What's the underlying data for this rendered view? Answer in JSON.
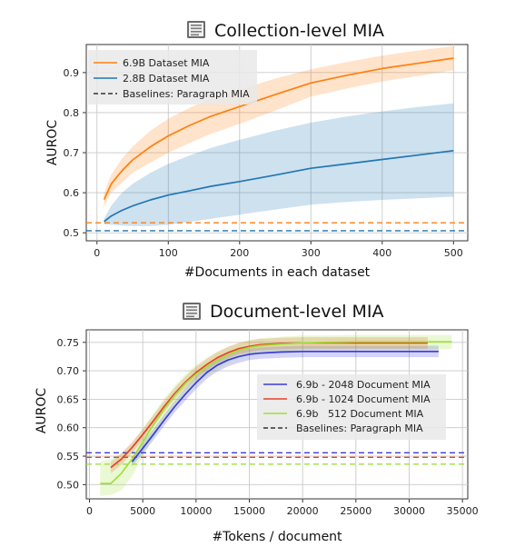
{
  "chart_data": [
    {
      "type": "line",
      "title": "Collection-level MIA",
      "title_icon": "document-stack-icon",
      "xlabel": "#Documents in each dataset",
      "ylabel": "AUROC",
      "xlim": [
        -15,
        520
      ],
      "ylim": [
        0.48,
        0.97
      ],
      "xticks": [
        0,
        100,
        200,
        300,
        400,
        500
      ],
      "yticks": [
        0.5,
        0.6,
        0.7,
        0.8,
        0.9
      ],
      "grid": true,
      "legend_position": "top-left",
      "series": [
        {
          "name": "6.9B Dataset MIA",
          "color": "#ff7f0e",
          "x": [
            10,
            20,
            35,
            50,
            75,
            100,
            130,
            160,
            200,
            250,
            300,
            350,
            400,
            450,
            500
          ],
          "y": [
            0.583,
            0.622,
            0.655,
            0.682,
            0.715,
            0.742,
            0.768,
            0.791,
            0.815,
            0.845,
            0.874,
            0.893,
            0.91,
            0.923,
            0.936
          ],
          "upper": [
            0.6,
            0.645,
            0.685,
            0.715,
            0.755,
            0.785,
            0.812,
            0.835,
            0.858,
            0.885,
            0.908,
            0.926,
            0.942,
            0.955,
            0.966
          ],
          "lower": [
            0.566,
            0.6,
            0.625,
            0.65,
            0.675,
            0.7,
            0.724,
            0.747,
            0.772,
            0.805,
            0.84,
            0.86,
            0.878,
            0.891,
            0.906
          ]
        },
        {
          "name": "2.8B Dataset MIA",
          "color": "#1f77b4",
          "x": [
            10,
            20,
            35,
            50,
            75,
            100,
            130,
            160,
            200,
            250,
            300,
            350,
            400,
            450,
            500
          ],
          "y": [
            0.528,
            0.542,
            0.556,
            0.567,
            0.582,
            0.594,
            0.605,
            0.616,
            0.628,
            0.644,
            0.661,
            0.672,
            0.683,
            0.694,
            0.705
          ],
          "upper": [
            0.535,
            0.568,
            0.6,
            0.622,
            0.65,
            0.672,
            0.693,
            0.712,
            0.732,
            0.755,
            0.775,
            0.79,
            0.803,
            0.814,
            0.823
          ],
          "lower": [
            0.521,
            0.52,
            0.518,
            0.517,
            0.517,
            0.52,
            0.527,
            0.535,
            0.545,
            0.558,
            0.57,
            0.577,
            0.582,
            0.586,
            0.59
          ]
        }
      ],
      "baselines": [
        {
          "name": "Baselines: Paragraph MIA",
          "value": 0.525,
          "color": "#ff7f0e"
        },
        {
          "name": "",
          "value": 0.505,
          "color": "#1f77b4"
        }
      ],
      "legend_baseline_label": "Baselines: Paragraph MIA"
    },
    {
      "type": "line",
      "title": "Document-level MIA",
      "title_icon": "document-icon",
      "xlabel": "#Tokens / document",
      "ylabel": "AUROC",
      "xlim": [
        -300,
        35500
      ],
      "ylim": [
        0.475,
        0.772
      ],
      "xticks": [
        0,
        5000,
        10000,
        15000,
        20000,
        25000,
        30000,
        35000
      ],
      "yticks": [
        0.5,
        0.55,
        0.6,
        0.65,
        0.7,
        0.75
      ],
      "grid": true,
      "legend_position": "center-right",
      "series": [
        {
          "name": "6.9b - 2048 Document MIA",
          "color": "#3b3bdc",
          "x": [
            4000,
            5000,
            6000,
            7000,
            8000,
            9000,
            10000,
            11000,
            12000,
            13000,
            14000,
            15000,
            16000,
            18000,
            20000,
            22000,
            25000,
            28000,
            30000,
            32768
          ],
          "y": [
            0.54,
            0.564,
            0.588,
            0.613,
            0.637,
            0.659,
            0.679,
            0.697,
            0.71,
            0.719,
            0.725,
            0.729,
            0.731,
            0.733,
            0.734,
            0.734,
            0.734,
            0.734,
            0.734,
            0.734
          ],
          "upper": [
            0.548,
            0.574,
            0.598,
            0.623,
            0.647,
            0.67,
            0.69,
            0.708,
            0.721,
            0.73,
            0.736,
            0.739,
            0.741,
            0.743,
            0.744,
            0.744,
            0.744,
            0.744,
            0.744,
            0.744
          ],
          "lower": [
            0.532,
            0.554,
            0.578,
            0.603,
            0.627,
            0.648,
            0.668,
            0.686,
            0.699,
            0.708,
            0.714,
            0.719,
            0.721,
            0.723,
            0.724,
            0.724,
            0.724,
            0.724,
            0.724,
            0.724
          ]
        },
        {
          "name": "6.9b - 1024 Document MIA",
          "color": "#e8402a",
          "x": [
            2000,
            3000,
            4000,
            5000,
            6000,
            7000,
            8000,
            9000,
            10000,
            11000,
            12000,
            13000,
            14000,
            15000,
            16000,
            18000,
            20000,
            22000,
            25000,
            28000,
            30000,
            31744
          ],
          "y": [
            0.53,
            0.545,
            0.565,
            0.588,
            0.612,
            0.637,
            0.66,
            0.68,
            0.697,
            0.711,
            0.723,
            0.732,
            0.739,
            0.743,
            0.746,
            0.748,
            0.749,
            0.749,
            0.749,
            0.749,
            0.749,
            0.749
          ],
          "upper": [
            0.54,
            0.555,
            0.575,
            0.598,
            0.622,
            0.647,
            0.67,
            0.69,
            0.707,
            0.721,
            0.733,
            0.742,
            0.749,
            0.753,
            0.756,
            0.758,
            0.759,
            0.759,
            0.759,
            0.759,
            0.759,
            0.759
          ],
          "lower": [
            0.52,
            0.535,
            0.555,
            0.578,
            0.602,
            0.627,
            0.65,
            0.67,
            0.687,
            0.701,
            0.713,
            0.722,
            0.729,
            0.733,
            0.736,
            0.738,
            0.739,
            0.739,
            0.739,
            0.739,
            0.739,
            0.739
          ]
        },
        {
          "name": "6.9b   512 Document MIA",
          "color": "#9fe03a",
          "x": [
            1000,
            2000,
            3000,
            4000,
            5000,
            6000,
            7000,
            8000,
            9000,
            10000,
            11000,
            12000,
            13000,
            14000,
            15000,
            16000,
            18000,
            20000,
            22000,
            25000,
            28000,
            30000,
            32000,
            34000
          ],
          "y": [
            0.502,
            0.502,
            0.52,
            0.545,
            0.575,
            0.605,
            0.633,
            0.657,
            0.678,
            0.694,
            0.707,
            0.718,
            0.728,
            0.736,
            0.741,
            0.744,
            0.747,
            0.749,
            0.75,
            0.751,
            0.751,
            0.751,
            0.751,
            0.751
          ],
          "upper": [
            0.54,
            0.545,
            0.555,
            0.572,
            0.598,
            0.625,
            0.651,
            0.674,
            0.694,
            0.71,
            0.723,
            0.733,
            0.742,
            0.749,
            0.754,
            0.757,
            0.76,
            0.762,
            0.762,
            0.763,
            0.763,
            0.763,
            0.763,
            0.763
          ],
          "lower": [
            0.48,
            0.482,
            0.49,
            0.515,
            0.55,
            0.583,
            0.614,
            0.64,
            0.662,
            0.678,
            0.691,
            0.703,
            0.714,
            0.723,
            0.728,
            0.731,
            0.734,
            0.736,
            0.737,
            0.738,
            0.738,
            0.738,
            0.738,
            0.738
          ]
        }
      ],
      "baselines": [
        {
          "name": "",
          "value": 0.556,
          "color": "#3b3bdc"
        },
        {
          "name": "",
          "value": 0.548,
          "color": "#e8402a"
        },
        {
          "name": "",
          "value": 0.536,
          "color": "#9fe03a"
        }
      ],
      "legend_baseline_label": "Baselines: Paragraph MIA"
    }
  ]
}
